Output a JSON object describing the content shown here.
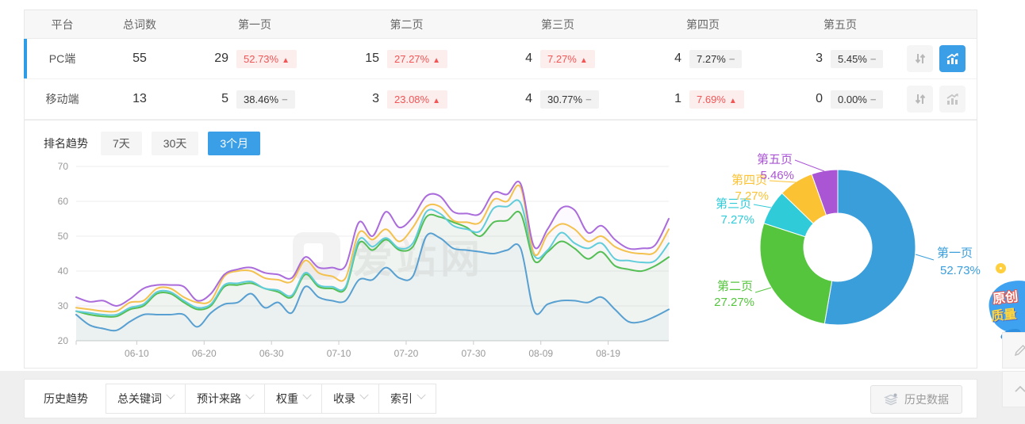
{
  "table": {
    "headers": [
      "平台",
      "总词数",
      "第一页",
      "第二页",
      "第三页",
      "第四页",
      "第五页"
    ],
    "rows": [
      {
        "platform": "PC端",
        "total": "55",
        "active": true,
        "pages": [
          {
            "count": "29",
            "pct": "52.73%",
            "trend": "up"
          },
          {
            "count": "15",
            "pct": "27.27%",
            "trend": "up"
          },
          {
            "count": "4",
            "pct": "7.27%",
            "trend": "up"
          },
          {
            "count": "4",
            "pct": "7.27%",
            "trend": "flat"
          },
          {
            "count": "3",
            "pct": "5.45%",
            "trend": "flat"
          }
        ]
      },
      {
        "platform": "移动端",
        "total": "13",
        "active": false,
        "pages": [
          {
            "count": "5",
            "pct": "38.46%",
            "trend": "flat"
          },
          {
            "count": "3",
            "pct": "23.08%",
            "trend": "up"
          },
          {
            "count": "4",
            "pct": "30.77%",
            "trend": "flat"
          },
          {
            "count": "1",
            "pct": "7.69%",
            "trend": "up"
          },
          {
            "count": "0",
            "pct": "0.00%",
            "trend": "flat"
          }
        ]
      }
    ]
  },
  "trend": {
    "label": "排名趋势",
    "tabs": [
      "7天",
      "30天",
      "3个月"
    ],
    "active_tab": 2
  },
  "watermark": "爱站网",
  "history": {
    "label": "历史趋势",
    "dropdowns": [
      "总关键词",
      "预计来路",
      "权重",
      "收录",
      "索引"
    ],
    "history_button": "历史数据"
  },
  "floating": {
    "badge_line1": "原创",
    "badge_line2": "质量"
  },
  "colors": {
    "accent_blue": "#3b9fe8",
    "badge_red": "#f25555",
    "badge_red_bg": "#fdeeee",
    "badge_gray_bg": "#f2f2f2"
  },
  "chart_data": [
    {
      "type": "line",
      "title": "排名趋势 3个月",
      "x": [
        "06-01",
        "06-03",
        "06-05",
        "06-07",
        "06-09",
        "06-11",
        "06-13",
        "06-15",
        "06-17",
        "06-19",
        "06-21",
        "06-23",
        "06-25",
        "06-27",
        "06-29",
        "07-01",
        "07-03",
        "07-05",
        "07-07",
        "07-09",
        "07-11",
        "07-13",
        "07-15",
        "07-17",
        "07-19",
        "07-21",
        "07-23",
        "07-25",
        "07-27",
        "07-29",
        "07-31",
        "08-02",
        "08-04",
        "08-06",
        "08-08",
        "08-10",
        "08-12",
        "08-14",
        "08-16",
        "08-18",
        "08-20",
        "08-22",
        "08-24",
        "08-26",
        "08-28"
      ],
      "x_axis_ticks": [
        "06-10",
        "06-20",
        "06-30",
        "07-10",
        "07-20",
        "07-30",
        "08-09",
        "08-19"
      ],
      "ylim": [
        20,
        70
      ],
      "y_ticks": [
        20,
        30,
        40,
        50,
        60,
        70
      ],
      "grid": true,
      "legend": "none",
      "series": [
        {
          "name": "第一页",
          "color": "#4f9fdb",
          "values": [
            27.5,
            24.5,
            23.5,
            23,
            25.5,
            27.5,
            27.5,
            27.5,
            27.5,
            24,
            28,
            30.5,
            31,
            33.5,
            29.5,
            31,
            28,
            35.5,
            32.5,
            31.5,
            31.5,
            37.5,
            37.5,
            41,
            38,
            38.5,
            50,
            49.5,
            46.5,
            46,
            45.5,
            45,
            46,
            46.5,
            28.5,
            30.5,
            31.5,
            31.5,
            31,
            32.5,
            29,
            25.5,
            25.5,
            27,
            29
          ]
        },
        {
          "name": "第二页",
          "color": "#4cc24c",
          "values": [
            28.5,
            27.5,
            27,
            27,
            29,
            30,
            33.5,
            33.5,
            31,
            29,
            30,
            35.5,
            36,
            36.5,
            35,
            34,
            32.5,
            39,
            35.5,
            35,
            35,
            48,
            46,
            49,
            46,
            47,
            55.5,
            55.5,
            54,
            52.5,
            50,
            54,
            54.5,
            56.5,
            43,
            45.5,
            48.5,
            46.5,
            43.5,
            45.5,
            41.5,
            40.5,
            40,
            41.5,
            44
          ]
        },
        {
          "name": "第三页",
          "color": "#5ad2e0",
          "values": [
            28.5,
            28,
            27.5,
            27.5,
            29.5,
            30.5,
            34,
            34,
            31.5,
            29.5,
            30.5,
            36,
            36.5,
            37,
            35,
            34.5,
            33,
            39.5,
            36,
            35.5,
            35.5,
            49,
            47,
            49.5,
            46.5,
            48,
            57,
            56.5,
            53,
            52,
            51.5,
            58,
            58.5,
            59.5,
            44.5,
            46,
            51,
            48,
            46.5,
            48,
            43.5,
            43,
            42.5,
            43,
            48
          ]
        },
        {
          "name": "第四页",
          "color": "#f6c448",
          "values": [
            29.5,
            29,
            28.5,
            28.5,
            31,
            31.5,
            35,
            35,
            32.5,
            31,
            31.5,
            38.5,
            40,
            40,
            38,
            37.5,
            37,
            43,
            39.5,
            38.5,
            38,
            51,
            49,
            52,
            48.5,
            52.5,
            58.5,
            58.5,
            54.5,
            54,
            54,
            60.5,
            60,
            64,
            45,
            50.5,
            53.5,
            52,
            48.5,
            50,
            47,
            45.5,
            45,
            45.5,
            52
          ]
        },
        {
          "name": "第五页",
          "color": "#aa6bdb",
          "values": [
            32.5,
            31.2,
            31.5,
            30,
            32,
            35,
            36,
            36,
            35.5,
            31.5,
            33.5,
            39,
            40.5,
            41,
            39.5,
            39,
            38,
            44,
            41,
            41,
            41.5,
            54,
            50,
            57,
            52.5,
            55.5,
            61.5,
            61.5,
            57,
            56.5,
            56.5,
            62.5,
            62,
            65,
            47,
            52,
            58,
            57.5,
            51,
            53,
            49,
            46.5,
            46.5,
            47.5,
            55
          ]
        }
      ]
    },
    {
      "type": "pie",
      "donut": true,
      "labels": [
        "第一页",
        "第二页",
        "第三页",
        "第四页",
        "第五页"
      ],
      "values": [
        52.73,
        27.27,
        7.27,
        7.27,
        5.46
      ],
      "display": [
        "52.73%",
        "27.27%",
        "7.27%",
        "7.27%",
        "5.46%"
      ],
      "colors": [
        "#3a9edb",
        "#55c53e",
        "#30cbd8",
        "#fbc233",
        "#aa55d4"
      ]
    }
  ]
}
